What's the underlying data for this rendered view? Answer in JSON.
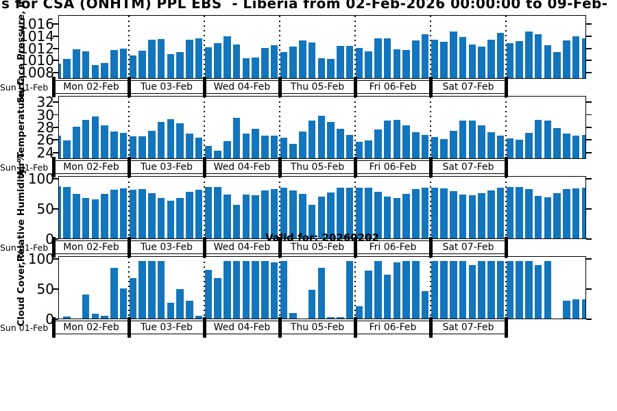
{
  "title": "s for CSA (ONHTM) PPL EBS  - Liberia from 02-Feb-2026 00:00:00 to 09-Feb-",
  "annotation": "Valid for: 20260202",
  "axis_start_label": "Sun 01-Feb",
  "day_labels": [
    "Mon 02-Feb",
    "Tue 03-Feb",
    "Wed 04-Feb",
    "Thu 05-Feb",
    "Fri 06-Feb",
    "Sat 07-Feb"
  ],
  "chart_data": {
    "type": "bar",
    "bar_color": "#1375bc",
    "time_step_hours": 3,
    "x_start": "Mon 02-Feb 00:00",
    "x_end": "Sun 08-Feb 00:00",
    "grid": "dotted vertical lines at day boundaries",
    "legend": "none",
    "panels": [
      {
        "ylabel": "Surface Pressure, mb",
        "ylim": [
          1007,
          1017.5
        ],
        "yticks": [
          1008,
          1010,
          1012,
          1014,
          1016
        ],
        "values": [
          1009.5,
          1010.3,
          1012.0,
          1011.6,
          1009.3,
          1009.6,
          1011.8,
          1012.1,
          1010.9,
          1011.7,
          1013.6,
          1013.7,
          1011.1,
          1011.5,
          1013.6,
          1013.8,
          1012.3,
          1013.0,
          1014.2,
          1012.8,
          1010.4,
          1010.6,
          1012.2,
          1012.7,
          1011.5,
          1012.4,
          1013.5,
          1013.1,
          1010.4,
          1010.3,
          1012.5,
          1012.6,
          1012.2,
          1011.6,
          1013.9,
          1013.8,
          1012.0,
          1011.8,
          1013.5,
          1014.5,
          1013.6,
          1013.2,
          1015.0,
          1014.1,
          1012.8,
          1012.4,
          1013.6,
          1014.8,
          1013.0,
          1013.4,
          1015.0,
          1014.6,
          1012.7,
          1011.5,
          1013.5,
          1014.2,
          1013.9
        ]
      },
      {
        "ylabel": "Air Temperature, C",
        "ylim": [
          23,
          33
        ],
        "yticks": [
          24,
          26,
          28,
          30,
          32
        ],
        "values": [
          26.7,
          26.0,
          28.2,
          29.4,
          29.9,
          28.5,
          27.4,
          27.2,
          26.6,
          26.6,
          27.6,
          29.0,
          29.5,
          28.8,
          27.1,
          26.4,
          25.1,
          24.3,
          25.8,
          29.7,
          27.1,
          27.9,
          26.8,
          26.7,
          26.4,
          25.4,
          27.4,
          29.3,
          30.0,
          29.0,
          27.9,
          26.9,
          25.7,
          26.0,
          27.8,
          29.2,
          29.4,
          28.4,
          27.3,
          26.9,
          26.5,
          26.2,
          27.5,
          29.2,
          29.3,
          28.5,
          27.3,
          26.8,
          26.3,
          26.1,
          27.2,
          29.4,
          29.2,
          28.0,
          27.1,
          26.7,
          26.9
        ]
      },
      {
        "ylabel": "Relative Humidity, %",
        "ylim": [
          0,
          105
        ],
        "yticks": [
          0,
          50,
          100
        ],
        "values": [
          91,
          89,
          77,
          70,
          68,
          77,
          85,
          87,
          85,
          86,
          79,
          70,
          66,
          71,
          81,
          85,
          90,
          89,
          76,
          59,
          76,
          75,
          83,
          86,
          88,
          84,
          77,
          59,
          73,
          80,
          88,
          88,
          88,
          88,
          81,
          73,
          71,
          78,
          86,
          88,
          88,
          87,
          82,
          76,
          75,
          79,
          84,
          88,
          89,
          90,
          86,
          74,
          72,
          79,
          86,
          87,
          88
        ]
      },
      {
        "ylabel": "Cloud Cover, %",
        "ylim": [
          0,
          105
        ],
        "yticks": [
          0,
          50,
          100
        ],
        "values": [
          0,
          4,
          0,
          42,
          8,
          5,
          88,
          52,
          71,
          100,
          100,
          100,
          28,
          51,
          31,
          5,
          85,
          71,
          100,
          100,
          100,
          100,
          100,
          98,
          100,
          10,
          0,
          50,
          88,
          3,
          3,
          100,
          22,
          84,
          100,
          76,
          98,
          100,
          100,
          48,
          100,
          100,
          100,
          100,
          93,
          100,
          100,
          100,
          100,
          100,
          100,
          93,
          100,
          0,
          31,
          33,
          34
        ]
      }
    ]
  }
}
